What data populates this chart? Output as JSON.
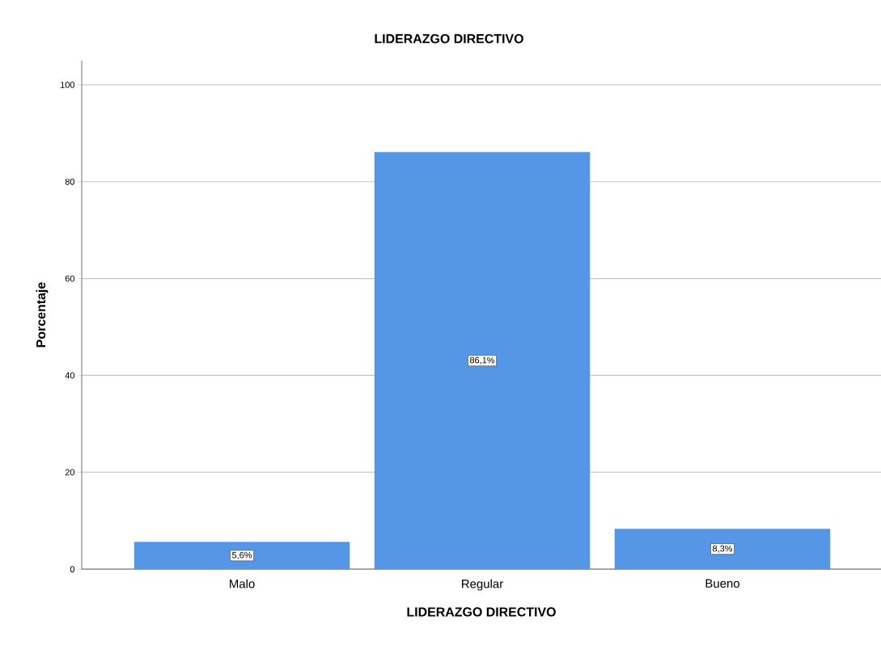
{
  "chart_data": {
    "type": "bar",
    "title": "LIDERAZGO DIRECTIVO",
    "xlabel": "LIDERAZGO DIRECTIVO",
    "ylabel": "Porcentaje",
    "categories": [
      "Malo",
      "Regular",
      "Bueno"
    ],
    "values": [
      5.6,
      86.1,
      8.3
    ],
    "value_labels": [
      "5,6%",
      "86,1%",
      "8,3%"
    ],
    "color": "#5596e6",
    "ylim": [
      0,
      105
    ],
    "yticks": [
      0,
      20,
      40,
      60,
      80,
      100
    ],
    "grid": "y"
  }
}
